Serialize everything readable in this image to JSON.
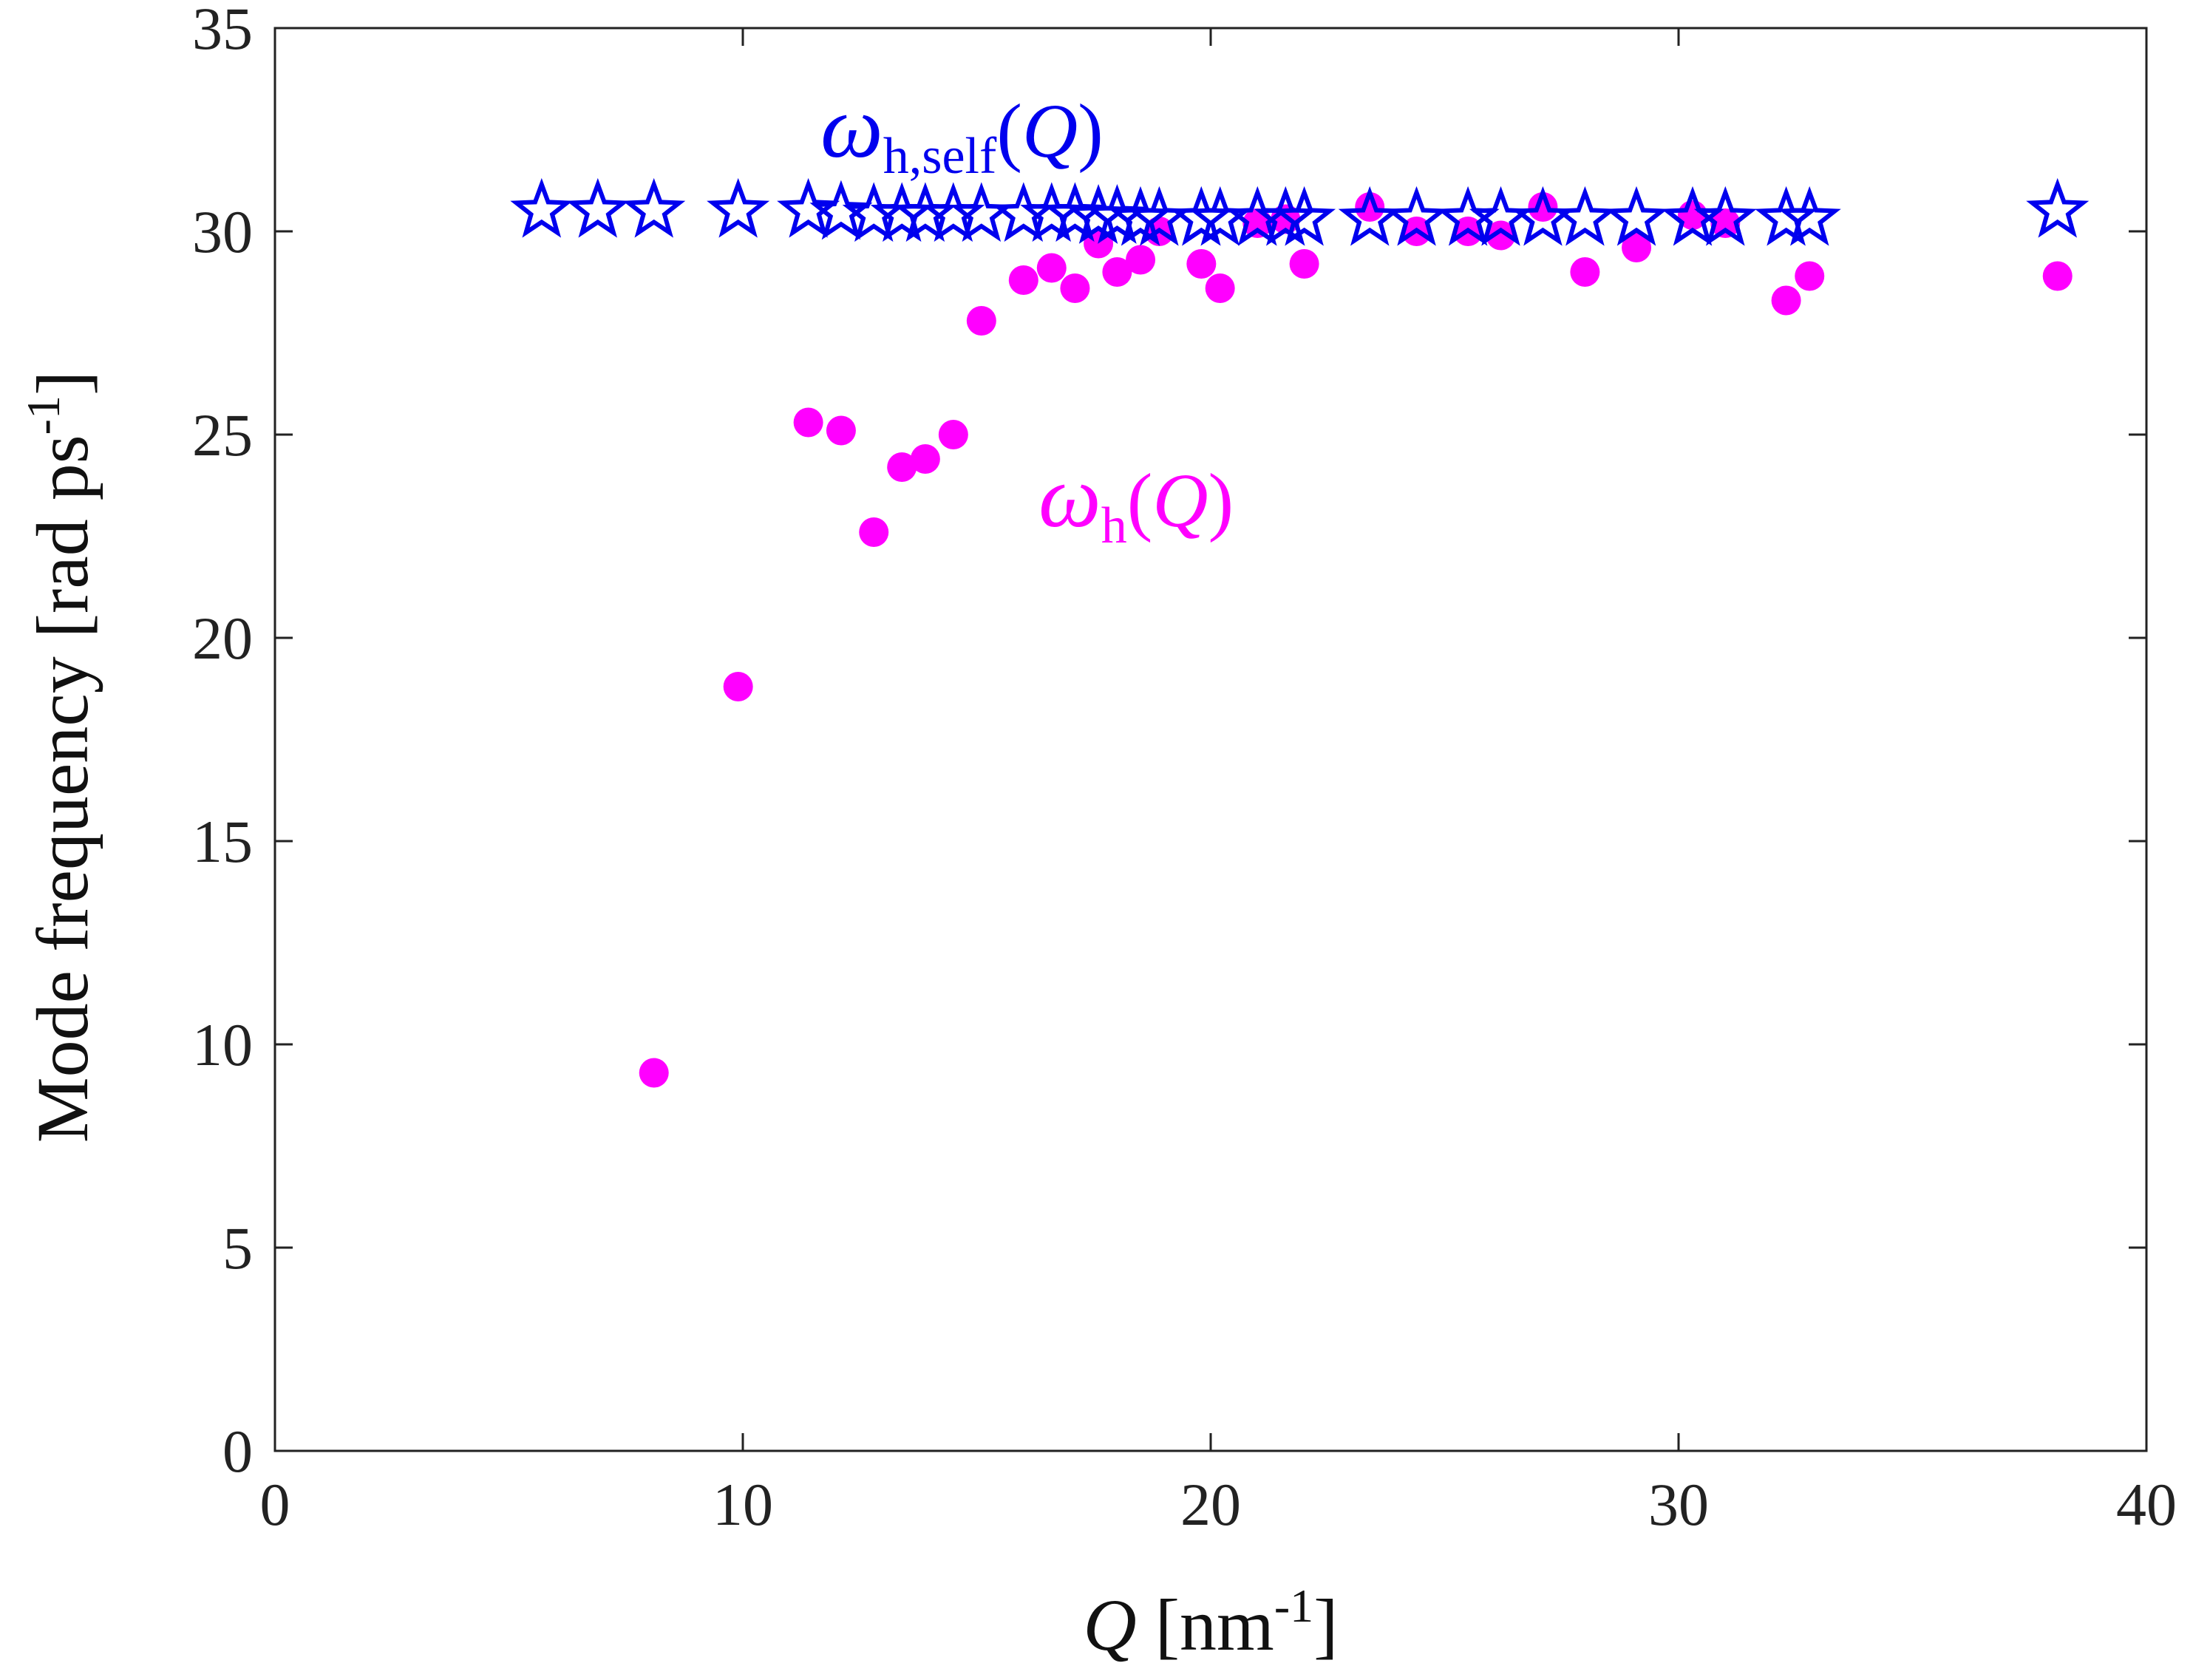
{
  "chart_data": {
    "type": "scatter",
    "title": "",
    "xlabel": {
      "symbol": "Q",
      "unit_text": " [nm",
      "unit_exp": "-1",
      "unit_close": "]"
    },
    "ylabel": {
      "text": "Mode frequency  [rad ps",
      "exp": "-1",
      "close": "]"
    },
    "xlim": [
      0,
      40
    ],
    "ylim": [
      0,
      35
    ],
    "xticks": [
      0,
      10,
      20,
      30,
      40
    ],
    "xtick_labels": [
      "0",
      "10",
      "20",
      "30",
      "40"
    ],
    "yticks": [
      0,
      5,
      10,
      15,
      20,
      25,
      30,
      35
    ],
    "ytick_labels": [
      "0",
      "5",
      "10",
      "15",
      "20",
      "25",
      "30",
      "35"
    ],
    "grid": false,
    "series": [
      {
        "name": "omega_h_self",
        "marker": "star-open",
        "color": "#0000ee",
        "annotation": {
          "omega": "ω",
          "sub": "h,self",
          "open": "(",
          "q": "Q",
          "close": ")"
        },
        "points": [
          [
            5.7,
            30.5
          ],
          [
            6.9,
            30.5
          ],
          [
            8.1,
            30.5
          ],
          [
            9.9,
            30.5
          ],
          [
            11.4,
            30.5
          ],
          [
            12.1,
            30.45
          ],
          [
            12.8,
            30.4
          ],
          [
            13.4,
            30.4
          ],
          [
            13.9,
            30.4
          ],
          [
            14.5,
            30.4
          ],
          [
            15.1,
            30.4
          ],
          [
            16.0,
            30.4
          ],
          [
            16.6,
            30.4
          ],
          [
            17.1,
            30.4
          ],
          [
            17.6,
            30.35
          ],
          [
            18.0,
            30.35
          ],
          [
            18.5,
            30.3
          ],
          [
            18.9,
            30.3
          ],
          [
            19.8,
            30.3
          ],
          [
            20.2,
            30.3
          ],
          [
            21.0,
            30.3
          ],
          [
            21.6,
            30.3
          ],
          [
            22.0,
            30.3
          ],
          [
            23.4,
            30.3
          ],
          [
            24.4,
            30.3
          ],
          [
            25.5,
            30.3
          ],
          [
            26.2,
            30.3
          ],
          [
            27.1,
            30.3
          ],
          [
            28.0,
            30.3
          ],
          [
            29.1,
            30.3
          ],
          [
            30.3,
            30.3
          ],
          [
            31.0,
            30.3
          ],
          [
            32.3,
            30.3
          ],
          [
            32.8,
            30.3
          ],
          [
            38.1,
            30.5
          ]
        ]
      },
      {
        "name": "omega_h",
        "marker": "filled-circle",
        "color": "#ff00ff",
        "annotation": {
          "omega": "ω",
          "sub": "h",
          "open": "(",
          "q": "Q",
          "close": ")"
        },
        "points": [
          [
            8.1,
            9.3
          ],
          [
            9.9,
            18.8
          ],
          [
            11.4,
            25.3
          ],
          [
            12.1,
            25.1
          ],
          [
            12.8,
            22.6
          ],
          [
            13.4,
            24.2
          ],
          [
            13.9,
            24.4
          ],
          [
            14.5,
            25.0
          ],
          [
            15.1,
            27.8
          ],
          [
            16.0,
            28.8
          ],
          [
            16.6,
            29.1
          ],
          [
            17.1,
            28.6
          ],
          [
            17.6,
            29.7
          ],
          [
            18.0,
            29.0
          ],
          [
            18.5,
            29.3
          ],
          [
            18.9,
            30.0
          ],
          [
            19.8,
            29.2
          ],
          [
            20.2,
            28.6
          ],
          [
            21.0,
            30.2
          ],
          [
            21.6,
            30.3
          ],
          [
            22.0,
            29.2
          ],
          [
            23.4,
            30.6
          ],
          [
            24.4,
            30.0
          ],
          [
            25.5,
            30.0
          ],
          [
            26.2,
            29.9
          ],
          [
            27.1,
            30.6
          ],
          [
            28.0,
            29.0
          ],
          [
            29.1,
            29.6
          ],
          [
            30.3,
            30.4
          ],
          [
            31.0,
            30.2
          ],
          [
            32.3,
            28.3
          ],
          [
            32.8,
            28.9
          ],
          [
            38.1,
            28.9
          ]
        ]
      }
    ]
  }
}
